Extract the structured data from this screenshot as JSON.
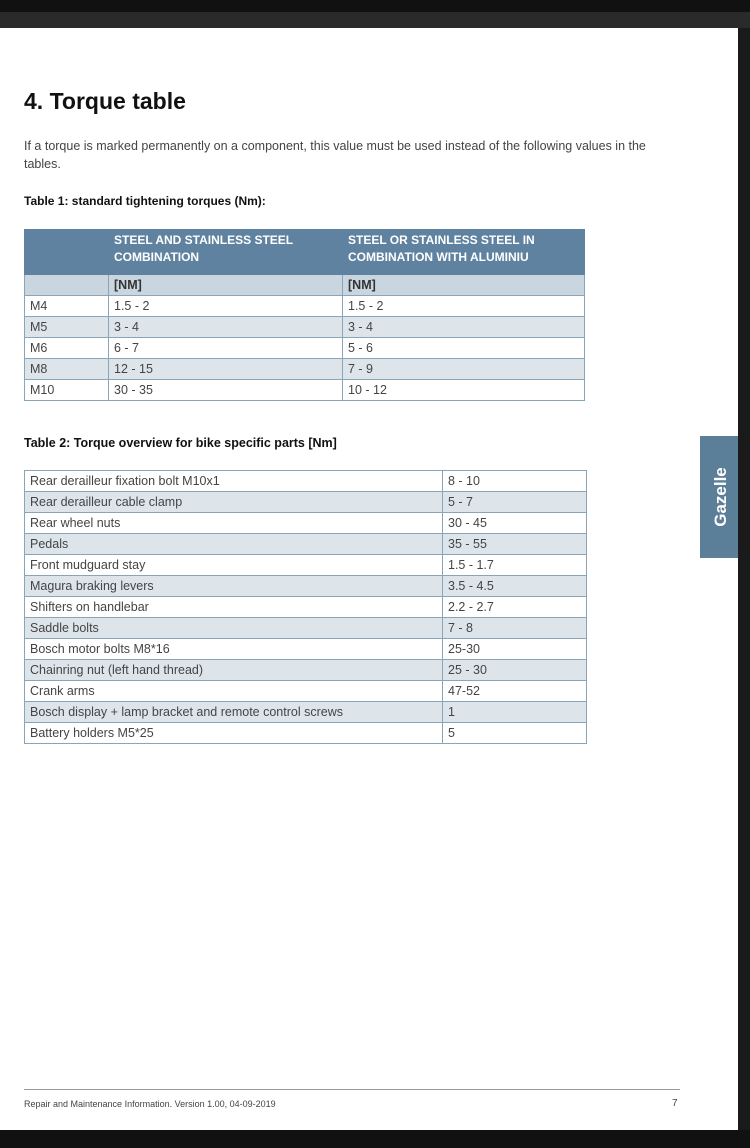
{
  "heading": "4. Torque table",
  "intro": "If a torque is marked permanently on a component, this value must be used instead of the following values in the tables.",
  "table1": {
    "caption": "Table 1: standard tightening torques (Nm):",
    "columns": [
      "STEEL AND STAINLESS STEEL COMBINATION",
      "STEEL OR STAINLESS STEEL IN COMBINATION WITH ALUMINIU"
    ],
    "units": [
      "[NM]",
      "[NM]"
    ],
    "rows": [
      [
        "M4",
        "1.5 - 2",
        "1.5 - 2"
      ],
      [
        "M5",
        "3 - 4",
        "3 - 4"
      ],
      [
        "M6",
        "6 - 7",
        "5 - 6"
      ],
      [
        "M8",
        "12 - 15",
        "7 - 9"
      ],
      [
        "M10",
        "30 - 35",
        "10 - 12"
      ]
    ]
  },
  "table2": {
    "caption": "Table 2: Torque overview for bike specific parts [Nm]",
    "rows": [
      [
        "Rear derailleur fixation bolt M10x1",
        "8 - 10"
      ],
      [
        "Rear derailleur cable clamp",
        "5 - 7"
      ],
      [
        "Rear wheel nuts",
        "30 - 45"
      ],
      [
        "Pedals",
        "35 - 55"
      ],
      [
        "Front mudguard stay",
        "1.5 - 1.7"
      ],
      [
        "Magura braking levers",
        "3.5 - 4.5"
      ],
      [
        "Shifters on handlebar",
        "2.2 - 2.7"
      ],
      [
        "Saddle bolts",
        "7 - 8"
      ],
      [
        "Bosch motor bolts M8*16",
        "25-30"
      ],
      [
        "Chainring nut (left hand thread)",
        "25 - 30"
      ],
      [
        "Crank arms",
        "47-52"
      ],
      [
        "Bosch display + lamp bracket and remote control screws",
        "1"
      ],
      [
        "Battery holders M5*25",
        "5"
      ]
    ]
  },
  "side_tab": "Gazelle",
  "footer": {
    "text": "Repair and Maintenance Information. Version 1.00, 04-09-2019",
    "page": "7"
  }
}
